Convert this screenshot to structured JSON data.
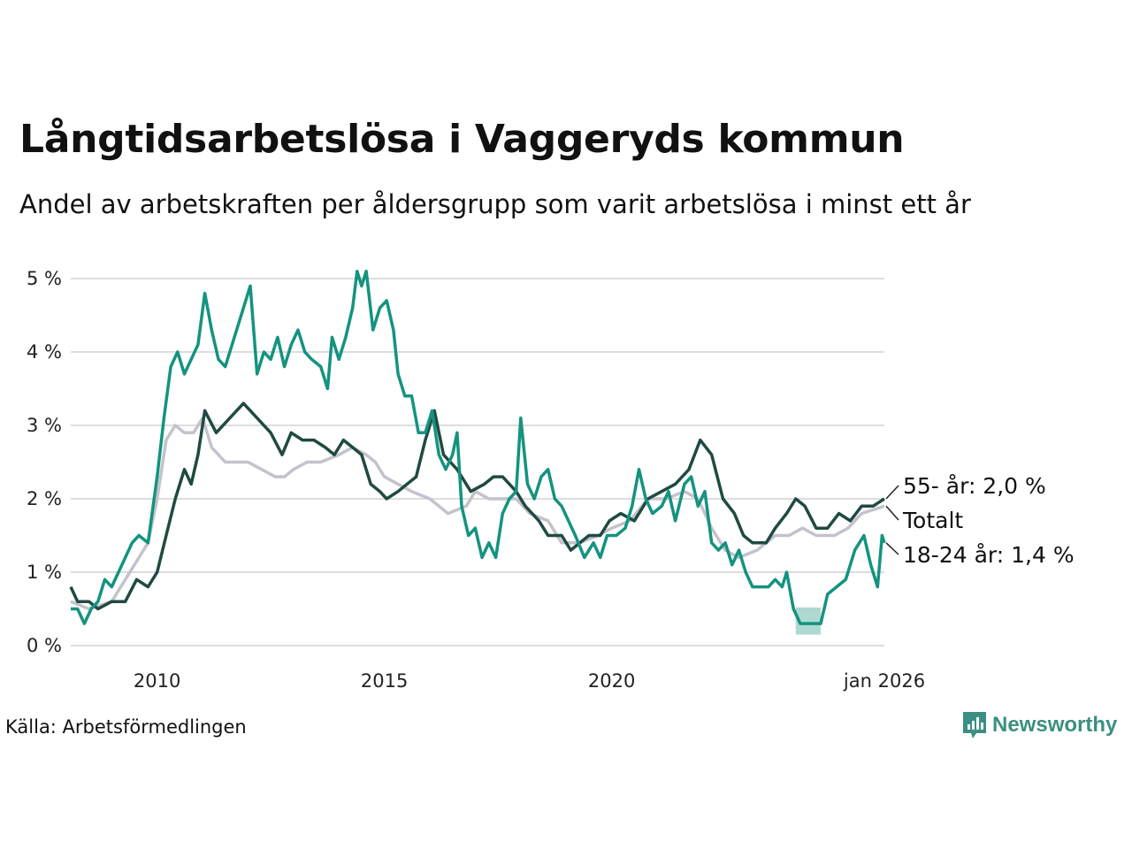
{
  "header": {
    "title": "Långtidsarbetslösa i Vaggeryds kommun",
    "subtitle": "Andel av arbetskraften per åldersgrupp som varit arbetslösa i minst ett år"
  },
  "footer": {
    "source": "Källa: Arbetsförmedlingen",
    "brand": "Newsworthy"
  },
  "colors": {
    "young": "#14937f",
    "old": "#1f4a42",
    "total": "#c4c2cc",
    "grid": "#dddddd",
    "brand": "#3b8f82"
  },
  "chart_data": {
    "type": "line",
    "title": "Långtidsarbetslösa i Vaggeryds kommun",
    "xlabel": "",
    "ylabel": "",
    "x_range": [
      2008.1,
      2026.0
    ],
    "ylim": [
      0,
      5.5
    ],
    "y_ticks": [
      0,
      1,
      2,
      3,
      4,
      5
    ],
    "y_tick_labels": [
      "0 %",
      "1 %",
      "2 %",
      "3 %",
      "4 %",
      "5 %"
    ],
    "x_ticks": [
      2010,
      2015,
      2020,
      2026.0
    ],
    "x_tick_labels": [
      "2010",
      "2015",
      "2020",
      "jan 2026"
    ],
    "grid": true,
    "series": [
      {
        "name": "Totalt",
        "label": "Totalt",
        "key": "total",
        "points": [
          [
            2008.1,
            0.6
          ],
          [
            2008.5,
            0.5
          ],
          [
            2009.0,
            0.6
          ],
          [
            2009.5,
            1.1
          ],
          [
            2009.8,
            1.4
          ],
          [
            2010.0,
            2.0
          ],
          [
            2010.2,
            2.8
          ],
          [
            2010.4,
            3.0
          ],
          [
            2010.6,
            2.9
          ],
          [
            2010.8,
            2.9
          ],
          [
            2011.0,
            3.1
          ],
          [
            2011.2,
            2.7
          ],
          [
            2011.5,
            2.5
          ],
          [
            2012.0,
            2.5
          ],
          [
            2012.3,
            2.4
          ],
          [
            2012.6,
            2.3
          ],
          [
            2012.8,
            2.3
          ],
          [
            2013.0,
            2.4
          ],
          [
            2013.3,
            2.5
          ],
          [
            2013.6,
            2.5
          ],
          [
            2014.0,
            2.6
          ],
          [
            2014.3,
            2.7
          ],
          [
            2014.6,
            2.6
          ],
          [
            2014.8,
            2.5
          ],
          [
            2015.0,
            2.3
          ],
          [
            2015.3,
            2.2
          ],
          [
            2015.6,
            2.1
          ],
          [
            2016.0,
            2.0
          ],
          [
            2016.4,
            1.8
          ],
          [
            2016.8,
            1.9
          ],
          [
            2017.0,
            2.1
          ],
          [
            2017.3,
            2.0
          ],
          [
            2017.6,
            2.0
          ],
          [
            2017.9,
            2.0
          ],
          [
            2018.2,
            1.8
          ],
          [
            2018.6,
            1.7
          ],
          [
            2018.9,
            1.4
          ],
          [
            2019.3,
            1.4
          ],
          [
            2019.7,
            1.5
          ],
          [
            2020.0,
            1.6
          ],
          [
            2020.4,
            1.7
          ],
          [
            2020.8,
            2.0
          ],
          [
            2021.2,
            2.0
          ],
          [
            2021.6,
            2.1
          ],
          [
            2021.9,
            2.0
          ],
          [
            2022.2,
            1.6
          ],
          [
            2022.5,
            1.3
          ],
          [
            2022.8,
            1.2
          ],
          [
            2023.2,
            1.3
          ],
          [
            2023.6,
            1.5
          ],
          [
            2023.9,
            1.5
          ],
          [
            2024.2,
            1.6
          ],
          [
            2024.5,
            1.5
          ],
          [
            2024.9,
            1.5
          ],
          [
            2025.2,
            1.6
          ],
          [
            2025.5,
            1.8
          ],
          [
            2026.0,
            1.9
          ]
        ]
      },
      {
        "name": "55- år",
        "label": "55- år: 2,0 %",
        "key": "old",
        "points": [
          [
            2008.1,
            0.8
          ],
          [
            2008.25,
            0.6
          ],
          [
            2008.5,
            0.6
          ],
          [
            2008.7,
            0.5
          ],
          [
            2009.0,
            0.6
          ],
          [
            2009.3,
            0.6
          ],
          [
            2009.55,
            0.9
          ],
          [
            2009.8,
            0.8
          ],
          [
            2010.0,
            1.0
          ],
          [
            2010.2,
            1.5
          ],
          [
            2010.4,
            2.0
          ],
          [
            2010.6,
            2.4
          ],
          [
            2010.75,
            2.2
          ],
          [
            2010.9,
            2.6
          ],
          [
            2011.05,
            3.2
          ],
          [
            2011.3,
            2.9
          ],
          [
            2011.6,
            3.1
          ],
          [
            2011.9,
            3.3
          ],
          [
            2012.2,
            3.1
          ],
          [
            2012.5,
            2.9
          ],
          [
            2012.75,
            2.6
          ],
          [
            2012.95,
            2.9
          ],
          [
            2013.2,
            2.8
          ],
          [
            2013.45,
            2.8
          ],
          [
            2013.7,
            2.7
          ],
          [
            2013.9,
            2.6
          ],
          [
            2014.1,
            2.8
          ],
          [
            2014.3,
            2.7
          ],
          [
            2014.5,
            2.6
          ],
          [
            2014.7,
            2.2
          ],
          [
            2014.9,
            2.1
          ],
          [
            2015.05,
            2.0
          ],
          [
            2015.3,
            2.1
          ],
          [
            2015.5,
            2.2
          ],
          [
            2015.7,
            2.3
          ],
          [
            2015.9,
            2.8
          ],
          [
            2016.1,
            3.2
          ],
          [
            2016.3,
            2.6
          ],
          [
            2016.6,
            2.4
          ],
          [
            2016.9,
            2.1
          ],
          [
            2017.2,
            2.2
          ],
          [
            2017.4,
            2.3
          ],
          [
            2017.6,
            2.3
          ],
          [
            2017.9,
            2.1
          ],
          [
            2018.1,
            1.9
          ],
          [
            2018.4,
            1.7
          ],
          [
            2018.6,
            1.5
          ],
          [
            2018.9,
            1.5
          ],
          [
            2019.1,
            1.3
          ],
          [
            2019.3,
            1.4
          ],
          [
            2019.5,
            1.5
          ],
          [
            2019.75,
            1.5
          ],
          [
            2019.95,
            1.7
          ],
          [
            2020.2,
            1.8
          ],
          [
            2020.5,
            1.7
          ],
          [
            2020.8,
            2.0
          ],
          [
            2021.1,
            2.1
          ],
          [
            2021.4,
            2.2
          ],
          [
            2021.7,
            2.4
          ],
          [
            2021.95,
            2.8
          ],
          [
            2022.2,
            2.6
          ],
          [
            2022.45,
            2.0
          ],
          [
            2022.7,
            1.8
          ],
          [
            2022.9,
            1.5
          ],
          [
            2023.1,
            1.4
          ],
          [
            2023.4,
            1.4
          ],
          [
            2023.6,
            1.6
          ],
          [
            2023.85,
            1.8
          ],
          [
            2024.05,
            2.0
          ],
          [
            2024.25,
            1.9
          ],
          [
            2024.5,
            1.6
          ],
          [
            2024.75,
            1.6
          ],
          [
            2025.0,
            1.8
          ],
          [
            2025.25,
            1.7
          ],
          [
            2025.5,
            1.9
          ],
          [
            2025.75,
            1.9
          ],
          [
            2026.0,
            2.0
          ]
        ]
      },
      {
        "name": "18-24 år",
        "label": "18-24 år: 1,4 %",
        "key": "young",
        "points": [
          [
            2008.1,
            0.5
          ],
          [
            2008.25,
            0.5
          ],
          [
            2008.4,
            0.3
          ],
          [
            2008.55,
            0.5
          ],
          [
            2008.7,
            0.6
          ],
          [
            2008.85,
            0.9
          ],
          [
            2009.0,
            0.8
          ],
          [
            2009.15,
            1.0
          ],
          [
            2009.3,
            1.2
          ],
          [
            2009.45,
            1.4
          ],
          [
            2009.6,
            1.5
          ],
          [
            2009.8,
            1.4
          ],
          [
            2010.0,
            2.3
          ],
          [
            2010.15,
            3.1
          ],
          [
            2010.3,
            3.8
          ],
          [
            2010.45,
            4.0
          ],
          [
            2010.6,
            3.7
          ],
          [
            2010.75,
            3.9
          ],
          [
            2010.9,
            4.1
          ],
          [
            2011.05,
            4.8
          ],
          [
            2011.2,
            4.3
          ],
          [
            2011.35,
            3.9
          ],
          [
            2011.5,
            3.8
          ],
          [
            2011.7,
            4.2
          ],
          [
            2011.9,
            4.6
          ],
          [
            2012.05,
            4.9
          ],
          [
            2012.2,
            3.7
          ],
          [
            2012.35,
            4.0
          ],
          [
            2012.5,
            3.9
          ],
          [
            2012.65,
            4.2
          ],
          [
            2012.8,
            3.8
          ],
          [
            2012.95,
            4.1
          ],
          [
            2013.1,
            4.3
          ],
          [
            2013.25,
            4.0
          ],
          [
            2013.4,
            3.9
          ],
          [
            2013.6,
            3.8
          ],
          [
            2013.75,
            3.5
          ],
          [
            2013.85,
            4.2
          ],
          [
            2014.0,
            3.9
          ],
          [
            2014.15,
            4.2
          ],
          [
            2014.3,
            4.6
          ],
          [
            2014.4,
            5.1
          ],
          [
            2014.5,
            4.9
          ],
          [
            2014.6,
            5.1
          ],
          [
            2014.75,
            4.3
          ],
          [
            2014.9,
            4.6
          ],
          [
            2015.05,
            4.7
          ],
          [
            2015.2,
            4.3
          ],
          [
            2015.3,
            3.7
          ],
          [
            2015.45,
            3.4
          ],
          [
            2015.6,
            3.4
          ],
          [
            2015.75,
            2.9
          ],
          [
            2015.9,
            2.9
          ],
          [
            2016.05,
            3.2
          ],
          [
            2016.2,
            2.6
          ],
          [
            2016.35,
            2.4
          ],
          [
            2016.5,
            2.6
          ],
          [
            2016.6,
            2.9
          ],
          [
            2016.7,
            1.9
          ],
          [
            2016.85,
            1.5
          ],
          [
            2017.0,
            1.6
          ],
          [
            2017.15,
            1.2
          ],
          [
            2017.3,
            1.4
          ],
          [
            2017.45,
            1.2
          ],
          [
            2017.6,
            1.8
          ],
          [
            2017.75,
            2.0
          ],
          [
            2017.9,
            2.1
          ],
          [
            2018.0,
            3.1
          ],
          [
            2018.15,
            2.2
          ],
          [
            2018.3,
            2.0
          ],
          [
            2018.45,
            2.3
          ],
          [
            2018.6,
            2.4
          ],
          [
            2018.75,
            2.0
          ],
          [
            2018.9,
            1.9
          ],
          [
            2019.05,
            1.7
          ],
          [
            2019.2,
            1.5
          ],
          [
            2019.4,
            1.2
          ],
          [
            2019.6,
            1.4
          ],
          [
            2019.75,
            1.2
          ],
          [
            2019.9,
            1.5
          ],
          [
            2020.1,
            1.5
          ],
          [
            2020.3,
            1.6
          ],
          [
            2020.45,
            1.9
          ],
          [
            2020.6,
            2.4
          ],
          [
            2020.75,
            2.0
          ],
          [
            2020.9,
            1.8
          ],
          [
            2021.1,
            1.9
          ],
          [
            2021.25,
            2.1
          ],
          [
            2021.4,
            1.7
          ],
          [
            2021.6,
            2.2
          ],
          [
            2021.75,
            2.3
          ],
          [
            2021.9,
            1.9
          ],
          [
            2022.05,
            2.1
          ],
          [
            2022.2,
            1.4
          ],
          [
            2022.35,
            1.3
          ],
          [
            2022.5,
            1.4
          ],
          [
            2022.65,
            1.1
          ],
          [
            2022.8,
            1.3
          ],
          [
            2022.95,
            1.0
          ],
          [
            2023.1,
            0.8
          ],
          [
            2023.3,
            0.8
          ],
          [
            2023.45,
            0.8
          ],
          [
            2023.6,
            0.9
          ],
          [
            2023.75,
            0.8
          ],
          [
            2023.85,
            1.0
          ],
          [
            2024.0,
            0.5
          ],
          [
            2024.15,
            0.3
          ],
          [
            2024.35,
            0.3
          ],
          [
            2024.5,
            0.3
          ],
          [
            2024.6,
            0.3
          ],
          [
            2024.75,
            0.7
          ],
          [
            2024.95,
            0.8
          ],
          [
            2025.15,
            0.9
          ],
          [
            2025.35,
            1.3
          ],
          [
            2025.55,
            1.5
          ],
          [
            2025.7,
            1.1
          ],
          [
            2025.85,
            0.8
          ],
          [
            2025.95,
            1.5
          ],
          [
            2026.0,
            1.4
          ]
        ]
      }
    ],
    "uncertainty_band": {
      "series": "18-24 år",
      "x_range": [
        2024.05,
        2024.6
      ],
      "low": 0.15,
      "high": 0.52
    }
  }
}
